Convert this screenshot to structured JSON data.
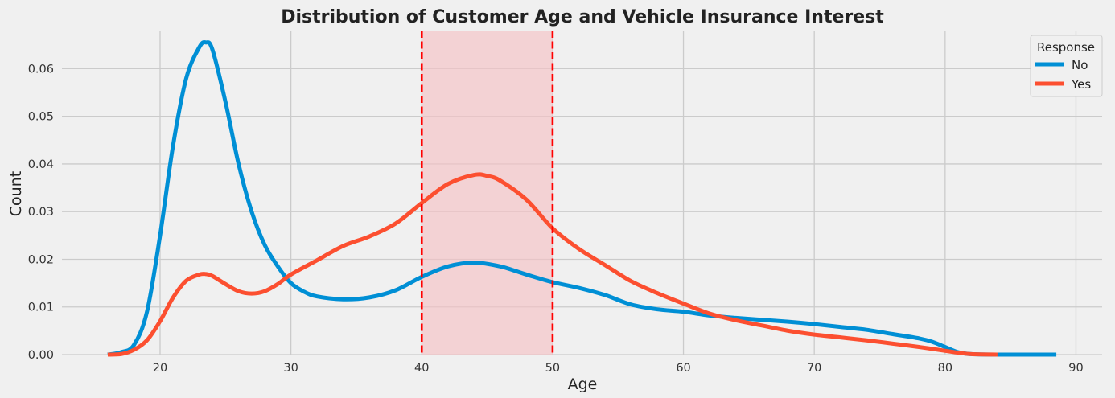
{
  "chart_data": {
    "type": "line",
    "title": "Distribution of Customer Age and Vehicle Insurance Interest",
    "xlabel": "Age",
    "ylabel": "Count",
    "xlim": [
      12.5,
      92
    ],
    "ylim": [
      0,
      0.068
    ],
    "xticks": [
      20,
      30,
      40,
      50,
      60,
      70,
      80,
      90
    ],
    "yticks": [
      0.0,
      0.01,
      0.02,
      0.03,
      0.04,
      0.05,
      0.06
    ],
    "ytick_labels": [
      "0.00",
      "0.01",
      "0.02",
      "0.03",
      "0.04",
      "0.05",
      "0.06"
    ],
    "grid": true,
    "legend": {
      "title": "Response",
      "placement": "top-right"
    },
    "shaded_region": {
      "x0": 40,
      "x1": 50,
      "color": "#f4c2c4"
    },
    "vlines": [
      {
        "x": 40,
        "color": "#ff0000",
        "style": "dashed"
      },
      {
        "x": 50,
        "color": "#ff0000",
        "style": "dashed"
      }
    ],
    "series": [
      {
        "name": "No",
        "color": "#008fd5",
        "x": [
          16,
          17,
          18,
          19,
          20,
          21,
          22,
          23,
          23.5,
          24,
          25,
          26,
          27,
          28,
          29,
          30,
          31,
          32,
          34,
          36,
          38,
          40,
          42,
          44,
          46,
          48,
          50,
          52,
          54,
          56,
          58,
          60,
          62,
          64,
          66,
          68,
          70,
          72,
          74,
          76,
          78,
          79,
          80,
          81,
          82,
          84,
          86,
          88.5
        ],
        "y": [
          0.0,
          0.0005,
          0.002,
          0.009,
          0.025,
          0.044,
          0.058,
          0.0645,
          0.0655,
          0.064,
          0.053,
          0.04,
          0.03,
          0.023,
          0.0185,
          0.015,
          0.0132,
          0.0122,
          0.0116,
          0.012,
          0.0135,
          0.0163,
          0.0185,
          0.0193,
          0.0185,
          0.0168,
          0.0152,
          0.014,
          0.0125,
          0.0105,
          0.0095,
          0.009,
          0.0082,
          0.0077,
          0.0073,
          0.0069,
          0.0064,
          0.0058,
          0.0052,
          0.0043,
          0.0034,
          0.0027,
          0.0016,
          0.0005,
          0.0001,
          0.0,
          0.0,
          0.0
        ]
      },
      {
        "name": "Yes",
        "color": "#fc4f30",
        "x": [
          16,
          17,
          18,
          19,
          20,
          21,
          22,
          23,
          23.5,
          24,
          25,
          26,
          27,
          28,
          29,
          30,
          32,
          34,
          36,
          38,
          40,
          42,
          44,
          45,
          46,
          48,
          50,
          52,
          54,
          56,
          58,
          60,
          62,
          64,
          66,
          68,
          70,
          72,
          74,
          76,
          78,
          80,
          81,
          82,
          84
        ],
        "y": [
          0.0,
          0.0001,
          0.001,
          0.003,
          0.007,
          0.012,
          0.0155,
          0.0168,
          0.0169,
          0.0165,
          0.0148,
          0.0133,
          0.0128,
          0.0133,
          0.0148,
          0.0168,
          0.0198,
          0.0228,
          0.0248,
          0.0275,
          0.0318,
          0.0358,
          0.0377,
          0.0375,
          0.0365,
          0.0325,
          0.0265,
          0.0222,
          0.0188,
          0.0154,
          0.0129,
          0.0107,
          0.0086,
          0.0072,
          0.0061,
          0.005,
          0.0042,
          0.0036,
          0.003,
          0.0023,
          0.0016,
          0.0008,
          0.0004,
          0.0001,
          0.0
        ]
      }
    ]
  }
}
